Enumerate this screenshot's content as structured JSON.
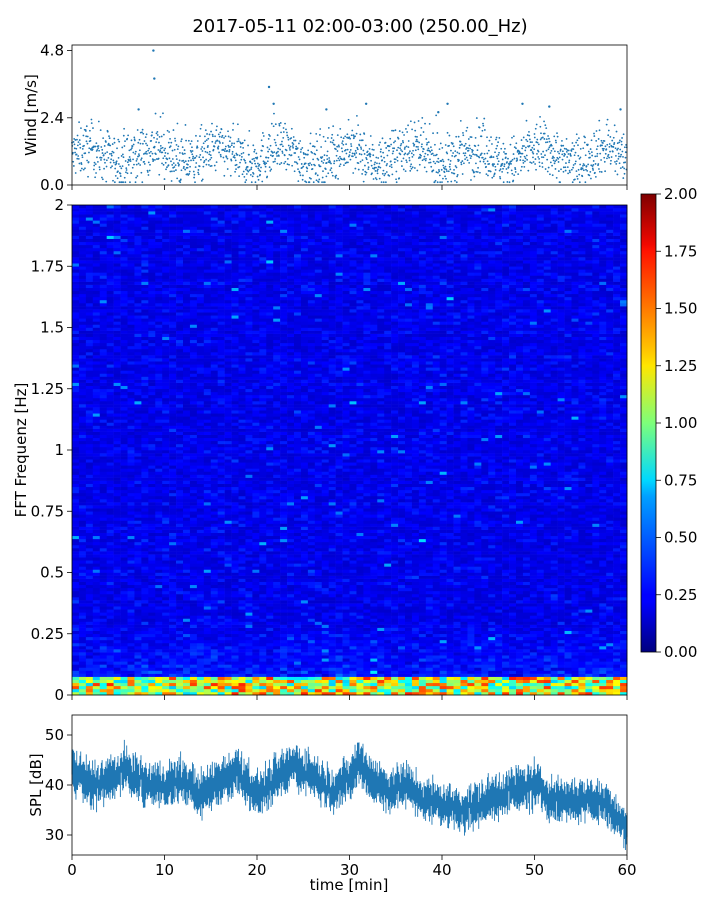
{
  "title": "2017-05-11 02:00-03:00 (250.00_Hz)",
  "chart_data": [
    {
      "type": "scatter",
      "ylabel": "Wind [m/s]",
      "xlim": [
        0,
        60
      ],
      "ylim": [
        0,
        5.0
      ],
      "yticks": [
        "0.0",
        "2.4",
        "4.8"
      ],
      "ytick_values": [
        0,
        2.4,
        4.8
      ],
      "grid": false,
      "color": "#1f77b4",
      "summary": {
        "baseline_mean": 1.05,
        "spread": 0.45,
        "n_points": 1800
      },
      "peaks": [
        {
          "x": 8.8,
          "y": 4.8
        },
        {
          "x": 8.9,
          "y": 3.8
        },
        {
          "x": 7.2,
          "y": 2.7
        },
        {
          "x": 21.3,
          "y": 3.5
        },
        {
          "x": 21.8,
          "y": 2.9
        },
        {
          "x": 27.5,
          "y": 2.7
        },
        {
          "x": 31.8,
          "y": 2.9
        },
        {
          "x": 39.6,
          "y": 2.6
        },
        {
          "x": 40.6,
          "y": 2.9
        },
        {
          "x": 48.7,
          "y": 2.9
        },
        {
          "x": 51.6,
          "y": 2.8
        },
        {
          "x": 59.3,
          "y": 2.7
        }
      ]
    },
    {
      "type": "heatmap",
      "ylabel": "FFT Frequenz [Hz]",
      "xlim": [
        0,
        60
      ],
      "ylim": [
        0,
        2
      ],
      "yticks": [
        "0",
        "0.25",
        "0.5",
        "0.75",
        "1",
        "1.25",
        "1.5",
        "1.75",
        "2"
      ],
      "ytick_values": [
        0,
        0.25,
        0.5,
        0.75,
        1,
        1.25,
        1.5,
        1.75,
        2
      ],
      "colormap": "jet",
      "colorbar": {
        "range": [
          0,
          2
        ],
        "ticks": [
          "0.00",
          "0.25",
          "0.50",
          "0.75",
          "1.00",
          "1.25",
          "1.50",
          "1.75",
          "2.00"
        ],
        "tick_values": [
          0,
          0.25,
          0.5,
          0.75,
          1.0,
          1.25,
          1.5,
          1.75,
          2.0
        ]
      },
      "summary": {
        "background_level": 0.2,
        "low_freq_band_hz": [
          0,
          0.08
        ],
        "low_freq_level": 1.3
      }
    },
    {
      "type": "area",
      "ylabel": "SPL [dB]",
      "xlabel": "time [min]",
      "xlim": [
        0,
        60
      ],
      "ylim": [
        26,
        54
      ],
      "yticks": [
        "30",
        "40",
        "50"
      ],
      "ytick_values": [
        30,
        40,
        50
      ],
      "xticks": [
        "0",
        "10",
        "20",
        "30",
        "40",
        "50",
        "60"
      ],
      "xtick_values": [
        0,
        10,
        20,
        30,
        40,
        50,
        60
      ],
      "color": "#1f77b4",
      "trend": [
        {
          "x": 0,
          "y": 43
        },
        {
          "x": 2,
          "y": 40
        },
        {
          "x": 4,
          "y": 41
        },
        {
          "x": 6,
          "y": 43
        },
        {
          "x": 8,
          "y": 40
        },
        {
          "x": 10,
          "y": 40
        },
        {
          "x": 12,
          "y": 41
        },
        {
          "x": 14,
          "y": 38
        },
        {
          "x": 16,
          "y": 41
        },
        {
          "x": 18,
          "y": 43
        },
        {
          "x": 20,
          "y": 38
        },
        {
          "x": 22,
          "y": 41
        },
        {
          "x": 24,
          "y": 44
        },
        {
          "x": 26,
          "y": 42
        },
        {
          "x": 28,
          "y": 39
        },
        {
          "x": 30,
          "y": 41
        },
        {
          "x": 31,
          "y": 45
        },
        {
          "x": 32,
          "y": 42
        },
        {
          "x": 34,
          "y": 39
        },
        {
          "x": 36,
          "y": 40
        },
        {
          "x": 38,
          "y": 37
        },
        {
          "x": 40,
          "y": 36
        },
        {
          "x": 42,
          "y": 35
        },
        {
          "x": 44,
          "y": 36
        },
        {
          "x": 46,
          "y": 38
        },
        {
          "x": 48,
          "y": 39
        },
        {
          "x": 50,
          "y": 40
        },
        {
          "x": 52,
          "y": 37
        },
        {
          "x": 54,
          "y": 37
        },
        {
          "x": 56,
          "y": 37
        },
        {
          "x": 58,
          "y": 36
        },
        {
          "x": 60,
          "y": 31
        }
      ],
      "band_halfwidth_db": 3.0
    }
  ]
}
